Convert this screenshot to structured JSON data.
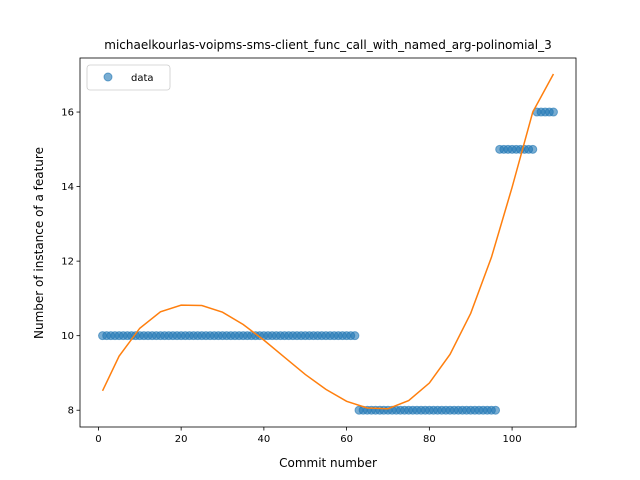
{
  "chart_data": {
    "type": "scatter",
    "title": "michaelkourlas-voipms-sms-client_func_call_with_named_arg-polinomial_3",
    "xlabel": "Commit number",
    "ylabel": "Number of instance of a feature",
    "xlim": [
      -4.45,
      115.45
    ],
    "ylim": [
      7.55,
      17.45
    ],
    "xticks": [
      0,
      20,
      40,
      60,
      80,
      100
    ],
    "yticks": [
      8,
      10,
      12,
      14,
      16
    ],
    "grid": false,
    "legend": {
      "position": "top-left",
      "entries": [
        "data"
      ]
    },
    "series": [
      {
        "name": "data",
        "kind": "points",
        "color": "#1f77b4",
        "points": [
          [
            1,
            10
          ],
          [
            2,
            10
          ],
          [
            3,
            10
          ],
          [
            4,
            10
          ],
          [
            5,
            10
          ],
          [
            6,
            10
          ],
          [
            7,
            10
          ],
          [
            8,
            10
          ],
          [
            9,
            10
          ],
          [
            10,
            10
          ],
          [
            11,
            10
          ],
          [
            12,
            10
          ],
          [
            13,
            10
          ],
          [
            14,
            10
          ],
          [
            15,
            10
          ],
          [
            16,
            10
          ],
          [
            17,
            10
          ],
          [
            18,
            10
          ],
          [
            19,
            10
          ],
          [
            20,
            10
          ],
          [
            21,
            10
          ],
          [
            22,
            10
          ],
          [
            23,
            10
          ],
          [
            24,
            10
          ],
          [
            25,
            10
          ],
          [
            26,
            10
          ],
          [
            27,
            10
          ],
          [
            28,
            10
          ],
          [
            29,
            10
          ],
          [
            30,
            10
          ],
          [
            31,
            10
          ],
          [
            32,
            10
          ],
          [
            33,
            10
          ],
          [
            34,
            10
          ],
          [
            35,
            10
          ],
          [
            36,
            10
          ],
          [
            37,
            10
          ],
          [
            38,
            10
          ],
          [
            39,
            10
          ],
          [
            40,
            10
          ],
          [
            41,
            10
          ],
          [
            42,
            10
          ],
          [
            43,
            10
          ],
          [
            44,
            10
          ],
          [
            45,
            10
          ],
          [
            46,
            10
          ],
          [
            47,
            10
          ],
          [
            48,
            10
          ],
          [
            49,
            10
          ],
          [
            50,
            10
          ],
          [
            51,
            10
          ],
          [
            52,
            10
          ],
          [
            53,
            10
          ],
          [
            54,
            10
          ],
          [
            55,
            10
          ],
          [
            56,
            10
          ],
          [
            57,
            10
          ],
          [
            58,
            10
          ],
          [
            59,
            10
          ],
          [
            60,
            10
          ],
          [
            61,
            10
          ],
          [
            62,
            10
          ],
          [
            63,
            8
          ],
          [
            64,
            8
          ],
          [
            65,
            8
          ],
          [
            66,
            8
          ],
          [
            67,
            8
          ],
          [
            68,
            8
          ],
          [
            69,
            8
          ],
          [
            70,
            8
          ],
          [
            71,
            8
          ],
          [
            72,
            8
          ],
          [
            73,
            8
          ],
          [
            74,
            8
          ],
          [
            75,
            8
          ],
          [
            76,
            8
          ],
          [
            77,
            8
          ],
          [
            78,
            8
          ],
          [
            79,
            8
          ],
          [
            80,
            8
          ],
          [
            81,
            8
          ],
          [
            82,
            8
          ],
          [
            83,
            8
          ],
          [
            84,
            8
          ],
          [
            85,
            8
          ],
          [
            86,
            8
          ],
          [
            87,
            8
          ],
          [
            88,
            8
          ],
          [
            89,
            8
          ],
          [
            90,
            8
          ],
          [
            91,
            8
          ],
          [
            92,
            8
          ],
          [
            93,
            8
          ],
          [
            94,
            8
          ],
          [
            95,
            8
          ],
          [
            96,
            8
          ],
          [
            97,
            15
          ],
          [
            98,
            15
          ],
          [
            99,
            15
          ],
          [
            100,
            15
          ],
          [
            101,
            15
          ],
          [
            102,
            15
          ],
          [
            103,
            15
          ],
          [
            104,
            15
          ],
          [
            105,
            15
          ],
          [
            106,
            16
          ],
          [
            107,
            16
          ],
          [
            108,
            16
          ],
          [
            109,
            16
          ],
          [
            110,
            16
          ]
        ]
      },
      {
        "kind": "fit",
        "color": "#ff7f0e",
        "points": [
          [
            1,
            8.52
          ],
          [
            5,
            9.45
          ],
          [
            10,
            10.2
          ],
          [
            15,
            10.64
          ],
          [
            20,
            10.82
          ],
          [
            25,
            10.81
          ],
          [
            30,
            10.63
          ],
          [
            35,
            10.3
          ],
          [
            40,
            9.88
          ],
          [
            45,
            9.42
          ],
          [
            50,
            8.96
          ],
          [
            55,
            8.56
          ],
          [
            60,
            8.24
          ],
          [
            65,
            8.06
          ],
          [
            70,
            8.04
          ],
          [
            75,
            8.26
          ],
          [
            80,
            8.73
          ],
          [
            85,
            9.5
          ],
          [
            90,
            10.6
          ],
          [
            95,
            12.1
          ],
          [
            100,
            13.98
          ],
          [
            105,
            16.0
          ],
          [
            110,
            17.02
          ]
        ]
      }
    ]
  }
}
